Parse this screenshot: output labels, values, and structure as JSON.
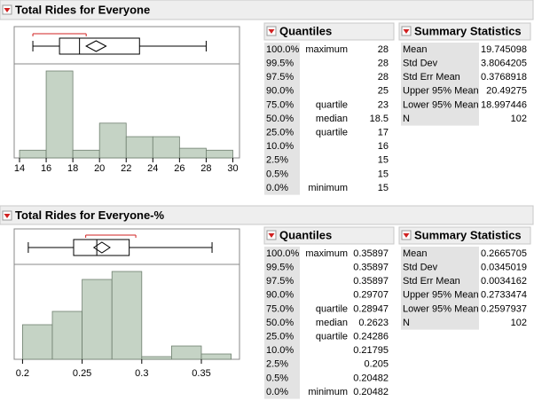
{
  "chart_data": [
    {
      "type": "histogram",
      "title": "Total Rides for Everyone",
      "bins": [
        14,
        16,
        18,
        20,
        22,
        24,
        26,
        28,
        30
      ],
      "values": [
        4,
        45,
        4,
        18,
        11,
        11,
        5,
        4
      ],
      "color": "#c5d3c5",
      "xlim": [
        13.6,
        30.5
      ],
      "xticks": [
        14,
        16,
        18,
        20,
        22,
        24,
        26,
        28,
        30
      ],
      "shortest_half": [
        15,
        19
      ]
    },
    {
      "type": "histogram",
      "title": "Total Rides for Everyone-%",
      "bins": [
        0.2,
        0.225,
        0.25,
        0.275,
        0.3,
        0.325,
        0.35,
        0.375
      ],
      "values": [
        13,
        18,
        30,
        33,
        1,
        5,
        2
      ],
      "color": "#c5d3c5",
      "xlim": [
        0.193,
        0.382
      ],
      "xticks": [
        0.2,
        0.25,
        0.3,
        0.35
      ],
      "shortest_half": [
        0.253,
        0.295
      ]
    }
  ],
  "panels": [
    {
      "quantiles_title": "Quantiles",
      "quantiles": [
        {
          "pct": "100.0%",
          "label": "maximum",
          "value": 28
        },
        {
          "pct": "99.5%",
          "value": 28
        },
        {
          "pct": "97.5%",
          "value": 28
        },
        {
          "pct": "90.0%",
          "value": 25
        },
        {
          "pct": "75.0%",
          "label": "quartile",
          "value": 23
        },
        {
          "pct": "50.0%",
          "label": "median",
          "value": 18.5
        },
        {
          "pct": "25.0%",
          "label": "quartile",
          "value": 17
        },
        {
          "pct": "10.0%",
          "value": 16
        },
        {
          "pct": "2.5%",
          "value": 15
        },
        {
          "pct": "0.5%",
          "value": 15
        },
        {
          "pct": "0.0%",
          "label": "minimum",
          "value": 15
        }
      ],
      "summary_title": "Summary Statistics",
      "summary": [
        [
          "Mean",
          19.745098
        ],
        [
          "Std Dev",
          3.8064205
        ],
        [
          "Std Err Mean",
          0.3768918
        ],
        [
          "Upper 95% Mean",
          20.49275
        ],
        [
          "Lower 95% Mean",
          18.997446
        ],
        [
          "N",
          102
        ]
      ]
    },
    {
      "quantiles_title": "Quantiles",
      "quantiles": [
        {
          "pct": "100.0%",
          "label": "maximum",
          "value": 0.35897
        },
        {
          "pct": "99.5%",
          "value": 0.35897
        },
        {
          "pct": "97.5%",
          "value": 0.35897
        },
        {
          "pct": "90.0%",
          "value": 0.29707
        },
        {
          "pct": "75.0%",
          "label": "quartile",
          "value": 0.28947
        },
        {
          "pct": "50.0%",
          "label": "median",
          "value": 0.2623
        },
        {
          "pct": "25.0%",
          "label": "quartile",
          "value": 0.24286
        },
        {
          "pct": "10.0%",
          "value": 0.21795
        },
        {
          "pct": "2.5%",
          "value": 0.205
        },
        {
          "pct": "0.5%",
          "value": 0.20482
        },
        {
          "pct": "0.0%",
          "label": "minimum",
          "value": 0.20482
        }
      ],
      "summary_title": "Summary Statistics",
      "summary": [
        [
          "Mean",
          0.2665705
        ],
        [
          "Std Dev",
          0.0345019
        ],
        [
          "Std Err Mean",
          0.0034162
        ],
        [
          "Upper 95% Mean",
          0.2733474
        ],
        [
          "Lower 95% Mean",
          0.2597937
        ],
        [
          "N",
          102
        ]
      ]
    }
  ]
}
